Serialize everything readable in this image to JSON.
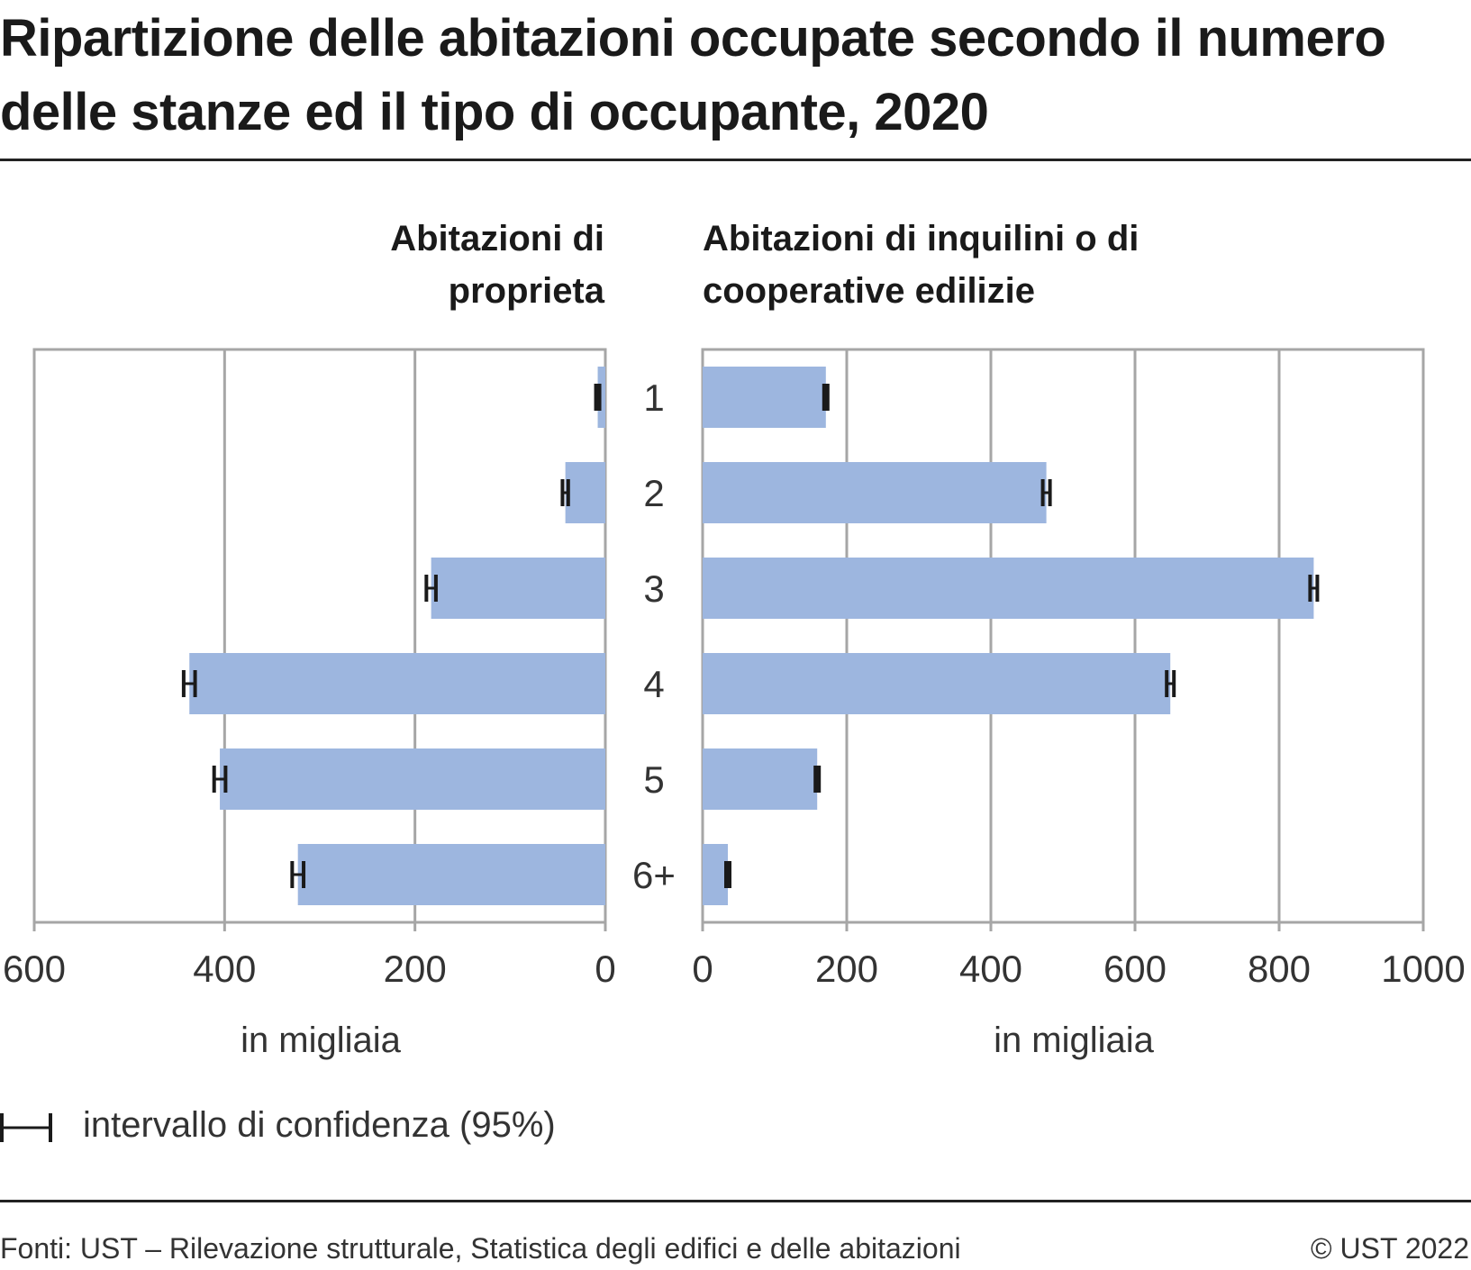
{
  "title": "Ripartizione delle abitazioni occupate secondo il numero delle stanze ed il tipo di occupante, 2020",
  "colors": {
    "bar": "#9db6df",
    "grid": "#a6a6a6",
    "error": "#1a1a1a",
    "rule": "#222222"
  },
  "legend": {
    "label": "intervallo di confidenza (95%)",
    "icon": "error-bar-icon"
  },
  "footer": {
    "source": "Fonti: UST – Rilevazione strutturale, Statistica degli edifici e delle abitazioni",
    "copyright": "© UST 2022"
  },
  "chart_data": [
    {
      "type": "bar",
      "orientation": "horizontal",
      "direction": "reversed",
      "title": "Abitazioni di proprieta",
      "xlabel": "in migliaia",
      "xlim": [
        0,
        600
      ],
      "xticks": [
        "600",
        "400",
        "200",
        "0"
      ],
      "categories": [
        "1",
        "2",
        "3",
        "4",
        "5",
        "6+"
      ],
      "values": [
        8,
        42,
        183,
        437,
        405,
        323
      ],
      "ci": [
        [
          6,
          10
        ],
        [
          39,
          45
        ],
        [
          178,
          188
        ],
        [
          431,
          443
        ],
        [
          399,
          411
        ],
        [
          317,
          329
        ]
      ]
    },
    {
      "type": "bar",
      "orientation": "horizontal",
      "title": "Abitazioni di inquilini o di cooperative edilizie",
      "xlabel": "in migliaia",
      "xlim": [
        0,
        1000
      ],
      "xticks": [
        "0",
        "200",
        "400",
        "600",
        "800",
        "1000"
      ],
      "categories": [
        "1",
        "2",
        "3",
        "4",
        "5",
        "6+"
      ],
      "values": [
        171,
        477,
        848,
        649,
        159,
        35
      ],
      "ci": [
        [
          169,
          173
        ],
        [
          472,
          482
        ],
        [
          843,
          853
        ],
        [
          644,
          654
        ],
        [
          157,
          161
        ],
        [
          34,
          36
        ]
      ]
    }
  ]
}
